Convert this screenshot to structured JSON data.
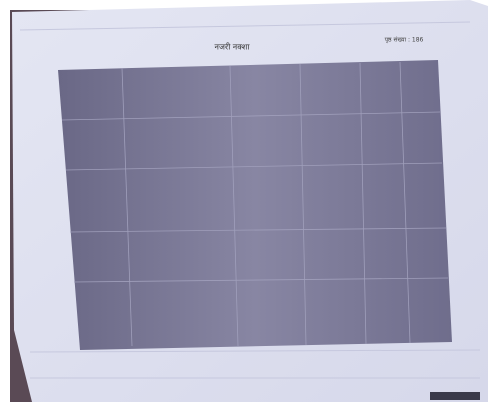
{
  "header": {
    "title": "नजरी नक्शा",
    "page_number": "पृष्ठ संख्या : 186"
  }
}
